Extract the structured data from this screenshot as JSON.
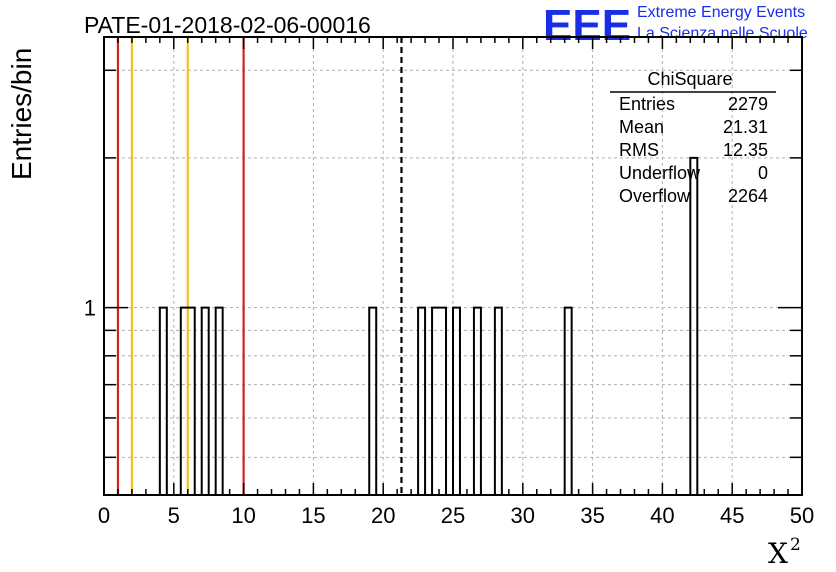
{
  "chart_data": {
    "type": "bar",
    "title": "PATE-01-2018-02-06-00016",
    "xlabel": "X",
    "xlabel_sup": "2",
    "ylabel": "Entries/bin",
    "xlim": [
      0,
      50
    ],
    "ylim_log": true,
    "x_ticks": [
      "0",
      "5",
      "10",
      "15",
      "20",
      "25",
      "30",
      "35",
      "40",
      "45",
      "50"
    ],
    "y_ticks": [
      "1"
    ],
    "bin_width": 0.5,
    "bins": [
      {
        "x": 4.0,
        "value": 1
      },
      {
        "x": 5.5,
        "value": 1
      },
      {
        "x": 6.0,
        "value": 1
      },
      {
        "x": 7.0,
        "value": 1
      },
      {
        "x": 8.0,
        "value": 1
      },
      {
        "x": 19.0,
        "value": 1
      },
      {
        "x": 22.5,
        "value": 1
      },
      {
        "x": 23.5,
        "value": 1
      },
      {
        "x": 24.0,
        "value": 1
      },
      {
        "x": 25.0,
        "value": 1
      },
      {
        "x": 26.5,
        "value": 1
      },
      {
        "x": 28.0,
        "value": 1
      },
      {
        "x": 33.0,
        "value": 1
      },
      {
        "x": 42.0,
        "value": 2
      }
    ],
    "vertical_lines": [
      {
        "x": 1.0,
        "color": "#d42020",
        "style": "solid"
      },
      {
        "x": 2.0,
        "color": "#f0c020",
        "style": "solid"
      },
      {
        "x": 6.0,
        "color": "#f0c020",
        "style": "solid"
      },
      {
        "x": 10.0,
        "color": "#d42020",
        "style": "solid"
      },
      {
        "x": 21.31,
        "color": "#000000",
        "style": "dashed"
      }
    ],
    "grid": true,
    "stats_box": {
      "title": "ChiSquare",
      "rows": [
        {
          "label": "Entries",
          "value": "2279"
        },
        {
          "label": "Mean",
          "value": "21.31"
        },
        {
          "label": "RMS",
          "value": "12.35"
        },
        {
          "label": "Underflow",
          "value": "0"
        },
        {
          "label": "Overflow",
          "value": "2264"
        }
      ],
      "position": "top-right"
    }
  },
  "logo": {
    "mark": "EEE",
    "line1": "Extreme Energy Events",
    "line2": "La Scienza nelle Scuole",
    "color": "#1a2ee8"
  }
}
